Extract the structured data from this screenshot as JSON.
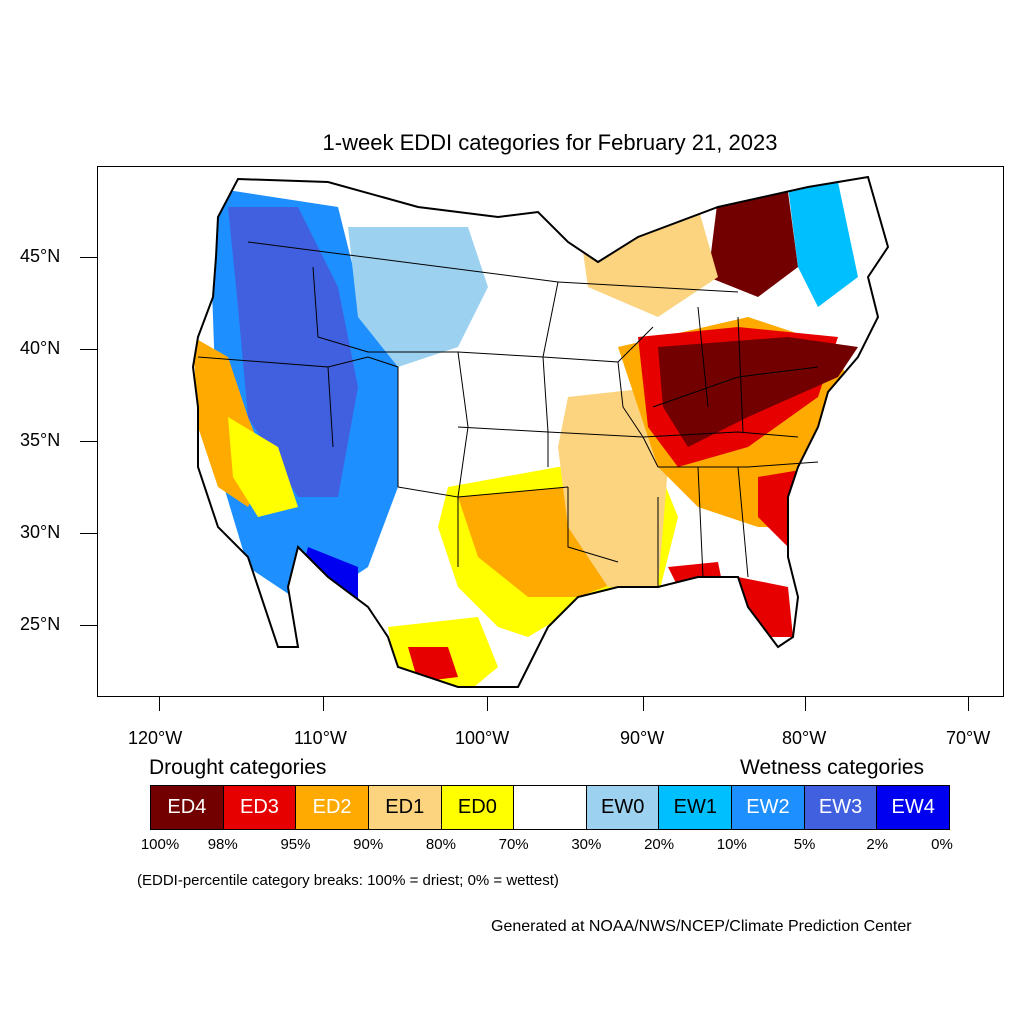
{
  "title": "1-week EDDI categories for February 21, 2023",
  "map": {
    "projection": "lat-lon",
    "lon_range": [
      -124,
      -68
    ],
    "lat_range": [
      21,
      50
    ],
    "lat_labels": [
      "45°N",
      "40°N",
      "35°N",
      "30°N",
      "25°N"
    ],
    "lon_labels": [
      "120°W",
      "110°W",
      "100°W",
      "90°W",
      "80°W",
      "70°W"
    ],
    "borders": "US states, Canada, Mexico coastlines",
    "dominant_patterns": [
      {
        "region": "Ohio Valley, Great Lakes, Mid-Atlantic",
        "category": "ED4"
      },
      {
        "region": "Southern Plains, Texas, Lower Mississippi",
        "category": "ED1-ED2"
      },
      {
        "region": "Intermountain West, Rockies",
        "category": "EW1-EW3"
      },
      {
        "region": "Northern Michigan / Upper Great Lakes",
        "category": "ED4"
      },
      {
        "region": "Florida peninsula",
        "category": "ED3"
      },
      {
        "region": "Baja California / Northwest Mexico",
        "category": "EW4"
      },
      {
        "region": "California coast",
        "category": "ED1-ED2"
      }
    ]
  },
  "legend": {
    "drought_heading": "Drought categories",
    "wetness_heading": "Wetness categories",
    "categories": [
      {
        "label": "ED4",
        "color": "#730000",
        "text_color": "#ffffff"
      },
      {
        "label": "ED3",
        "color": "#e60000",
        "text_color": "#ffffff"
      },
      {
        "label": "ED2",
        "color": "#ffaa00",
        "text_color": "#ffffff"
      },
      {
        "label": "ED1",
        "color": "#fcd37f",
        "text_color": "#000000"
      },
      {
        "label": "ED0",
        "color": "#ffff00",
        "text_color": "#000000"
      },
      {
        "label": "",
        "color": "#ffffff",
        "text_color": "#000000"
      },
      {
        "label": "EW0",
        "color": "#9dd1f0",
        "text_color": "#000000"
      },
      {
        "label": "EW1",
        "color": "#00bfff",
        "text_color": "#000000"
      },
      {
        "label": "EW2",
        "color": "#1e8fff",
        "text_color": "#ffffff"
      },
      {
        "label": "EW3",
        "color": "#4060e0",
        "text_color": "#ffffff"
      },
      {
        "label": "EW4",
        "color": "#0000f0",
        "text_color": "#ffffff"
      }
    ],
    "breaks": [
      "100%",
      "98%",
      "95%",
      "90%",
      "80%",
      "70%",
      "30%",
      "20%",
      "10%",
      "5%",
      "2%",
      "0%"
    ]
  },
  "note": "(EDDI-percentile category breaks: 100% = driest; 0% = wettest)",
  "credit": "Generated at NOAA/NWS/NCEP/Climate Prediction Center"
}
